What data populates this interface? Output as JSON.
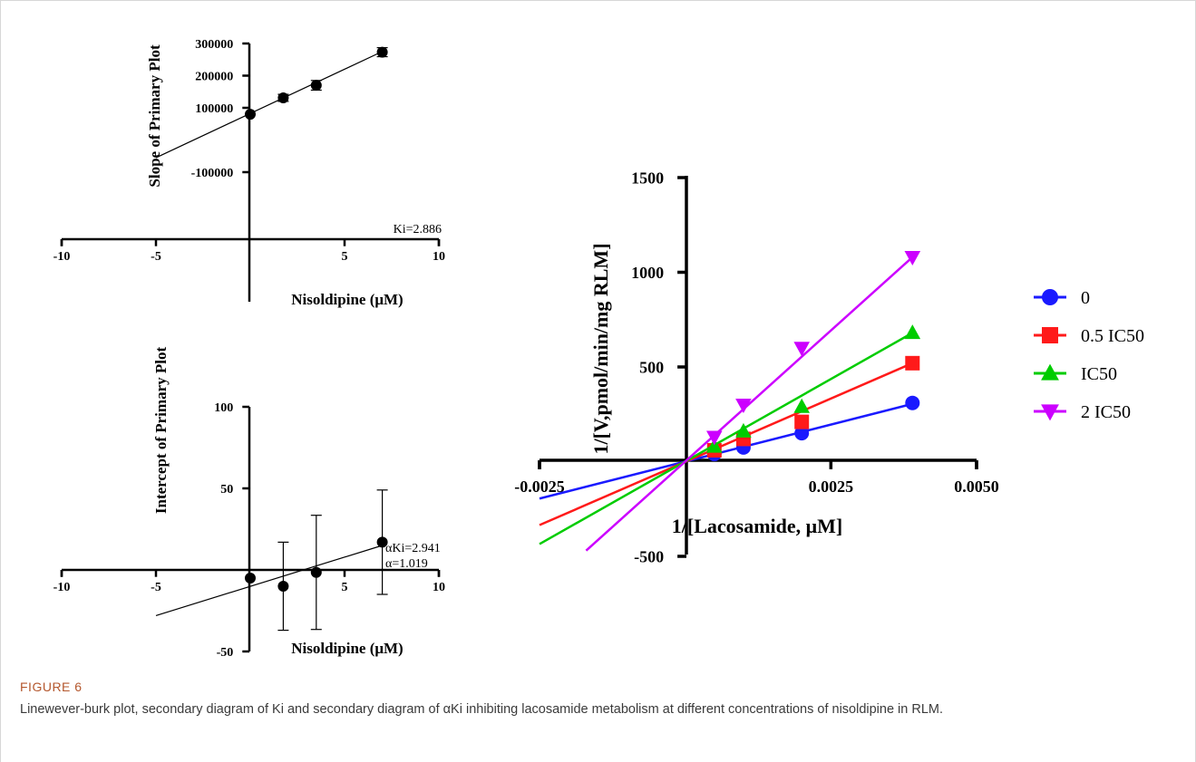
{
  "figure": {
    "label": "FIGURE 6",
    "caption": "Linewever-burk plot, secondary diagram of Ki and secondary diagram of αKi inhibiting lacosamide metabolism at different concentrations of nisoldipine in RLM."
  },
  "chart_data": [
    {
      "type": "scatter",
      "panel": "top-left",
      "xlabel": "Nisoldipine (μM)",
      "ylabel": "Slope of Primary Plot",
      "xlim": [
        -10,
        10
      ],
      "ylim": [
        -100000,
        300000
      ],
      "xticks": [
        "-10",
        "-5",
        "5",
        "10"
      ],
      "yticks": [
        "-100000",
        "100000",
        "200000",
        "300000"
      ],
      "points": [
        {
          "x": 0,
          "y": 80000,
          "err": 0
        },
        {
          "x": 1.75,
          "y": 131000,
          "err": 11000
        },
        {
          "x": 3.5,
          "y": 170000,
          "err": 15000
        },
        {
          "x": 7,
          "y": 273000,
          "err": 14000
        }
      ],
      "fit": {
        "x": [
          -5,
          7
        ],
        "y": [
          -55000,
          275000
        ]
      },
      "annotation": "Ki=2.886"
    },
    {
      "type": "scatter",
      "panel": "bottom-left",
      "xlabel": "Nisoldipine (μM)",
      "ylabel": "Intercept of Primary Plot",
      "xlim": [
        -10,
        10
      ],
      "ylim": [
        -50,
        100
      ],
      "xticks": [
        "-10",
        "-5",
        "5",
        "10"
      ],
      "yticks": [
        "-50",
        "50",
        "100"
      ],
      "points": [
        {
          "x": 0,
          "y": -5,
          "err": 0
        },
        {
          "x": 1.75,
          "y": -10,
          "err": 27
        },
        {
          "x": 3.5,
          "y": -1.5,
          "err": 35
        },
        {
          "x": 7,
          "y": 17,
          "err": 32
        }
      ],
      "fit": {
        "x": [
          -5,
          7
        ],
        "y": [
          -28,
          15
        ]
      },
      "annotations": [
        "αKi=2.941",
        "α=1.019"
      ]
    },
    {
      "type": "line",
      "panel": "right",
      "xlabel": "1/[Lacosamide, μM]",
      "ylabel": "1/[V,pmol/min/mg RLM]",
      "xlim": [
        -0.0025,
        0.005
      ],
      "ylim": [
        -500,
        1500
      ],
      "xticks": [
        "-0.0025",
        "0.0025",
        "0.0050"
      ],
      "yticks": [
        "-500",
        "500",
        "1000",
        "1500"
      ],
      "legend_position": "right",
      "series": [
        {
          "name": "0",
          "color": "#1a1aff",
          "marker": "circle",
          "x": [
            0.0005,
            0.001,
            0.002,
            0.0039
          ],
          "y": [
            40,
            75,
            150,
            310
          ],
          "fit_x": [
            -0.0025,
            0.0039
          ],
          "fit_y": [
            -195,
            305
          ]
        },
        {
          "name": "0.5 IC50",
          "color": "#ff1a1a",
          "marker": "square",
          "x": [
            0.0005,
            0.001,
            0.002,
            0.0039
          ],
          "y": [
            60,
            120,
            210,
            520
          ],
          "fit_x": [
            -0.0025,
            0.0039
          ],
          "fit_y": [
            -335,
            520
          ]
        },
        {
          "name": "IC50",
          "color": "#00cc00",
          "marker": "triangle-up",
          "x": [
            0.0005,
            0.001,
            0.002,
            0.0039
          ],
          "y": [
            80,
            160,
            290,
            680
          ],
          "fit_x": [
            -0.0025,
            0.0039
          ],
          "fit_y": [
            -435,
            680
          ]
        },
        {
          "name": "2 IC50",
          "color": "#cc00ff",
          "marker": "triangle-down",
          "x": [
            0.0005,
            0.001,
            0.002,
            0.0039
          ],
          "y": [
            130,
            300,
            600,
            1080
          ],
          "fit_x": [
            -0.0017,
            0.0039
          ],
          "fit_y": [
            -470,
            1080
          ]
        }
      ]
    }
  ]
}
